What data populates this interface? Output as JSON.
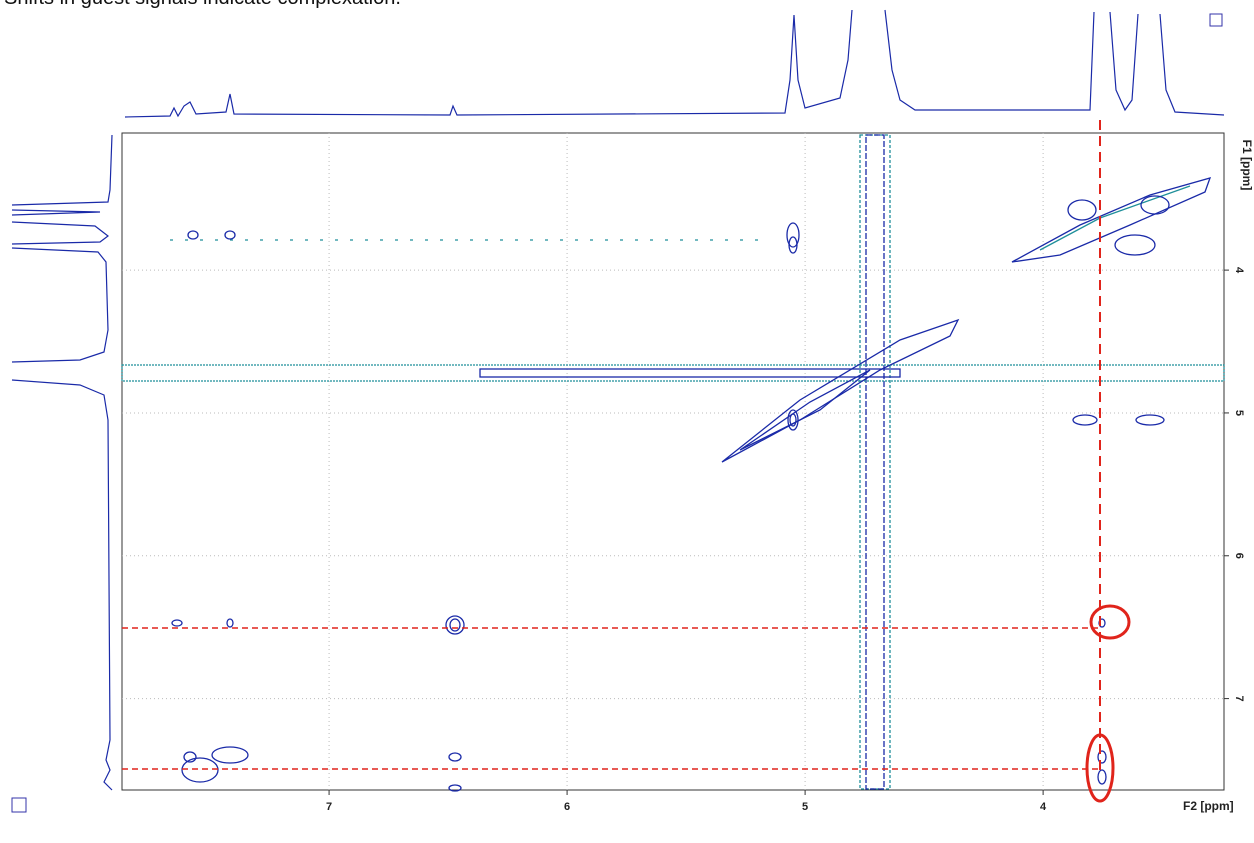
{
  "chart_data": {
    "type": "nmr2d",
    "title": "Shifts in guest signals indicate complexation.",
    "xlabel": "F2 [ppm]",
    "ylabel": "F1 [ppm]",
    "xlim": [
      7.87,
      3.24
    ],
    "ylim": [
      3.04,
      7.64
    ],
    "xticks": [
      7,
      6,
      5,
      4
    ],
    "yticks": [
      4,
      5,
      6,
      7
    ],
    "grid": true
  }
}
